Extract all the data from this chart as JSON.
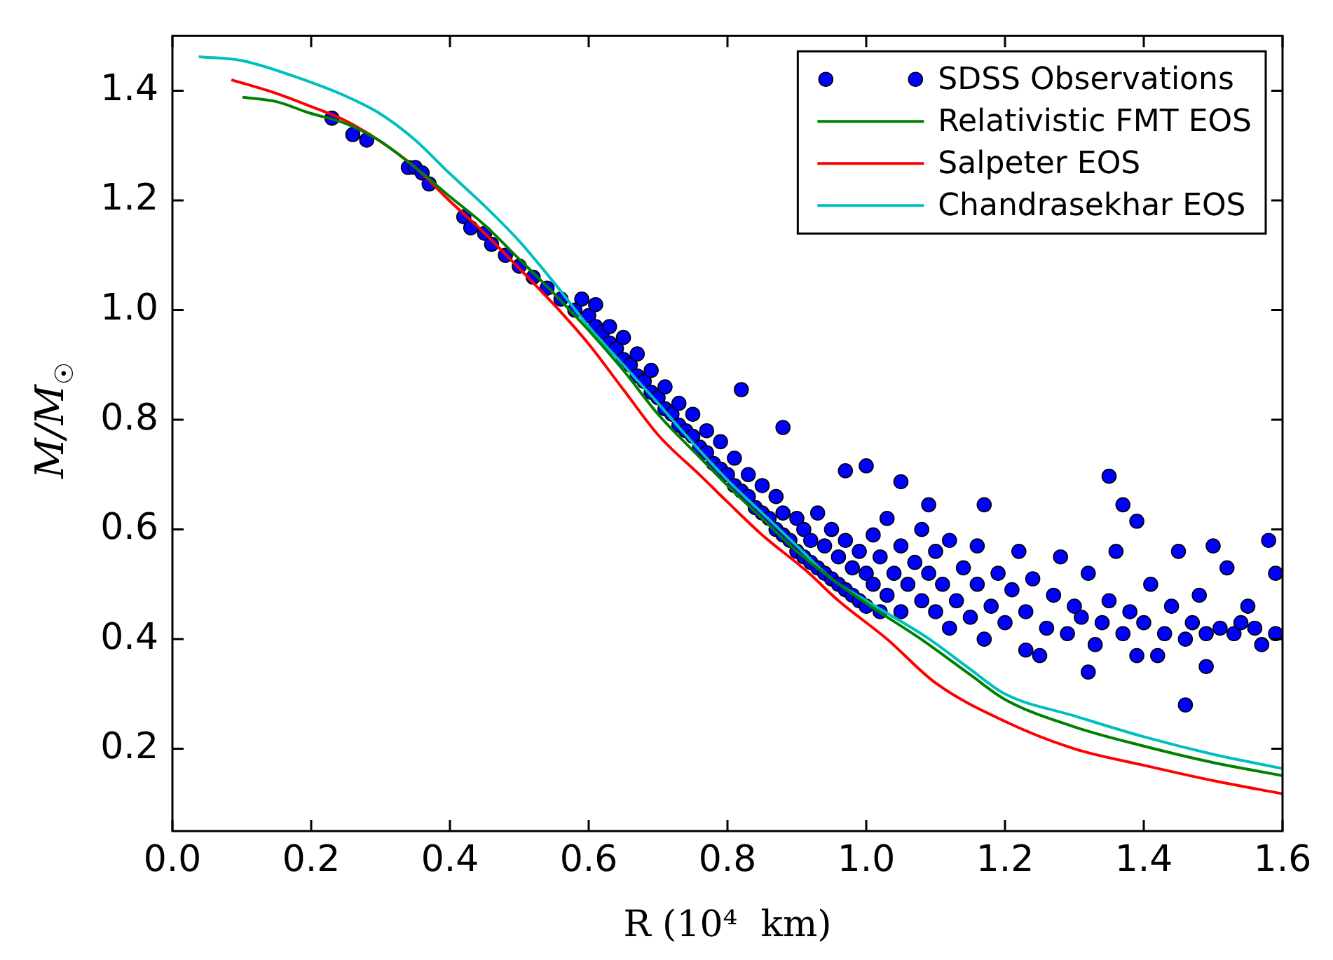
{
  "chart_data": {
    "type": "scatter",
    "xlabel": "R (10⁴  km)",
    "ylabel": "M/M$_{☉}$",
    "xlim": [
      0,
      1.6
    ],
    "xticks": [
      {
        "value": 0,
        "label": "0.0"
      },
      0.2,
      0.4,
      0.6,
      0.8,
      {
        "value": 1,
        "label": "1.0"
      },
      1.2,
      1.4,
      1.6
    ],
    "ylim": [
      0.05,
      1.5
    ],
    "yticks": [
      0.2,
      0.4,
      0.6,
      0.8,
      {
        "value": 1,
        "label": "1.0"
      },
      1.2,
      1.4
    ],
    "grid": false,
    "legend": "top right",
    "series": [
      {
        "name": "SDSS Observations",
        "marker": "circle",
        "color": "#0000ff",
        "x": [
          0.23,
          0.26,
          0.28,
          0.34,
          0.35,
          0.36,
          0.37,
          0.42,
          0.43,
          0.45,
          0.46,
          0.48,
          0.5,
          0.52,
          0.54,
          0.56,
          0.58,
          0.59,
          0.6,
          0.61,
          0.61,
          0.62,
          0.63,
          0.63,
          0.64,
          0.65,
          0.65,
          0.66,
          0.67,
          0.67,
          0.68,
          0.69,
          0.69,
          0.7,
          0.71,
          0.71,
          0.72,
          0.73,
          0.73,
          0.74,
          0.75,
          0.75,
          0.76,
          0.77,
          0.77,
          0.78,
          0.79,
          0.79,
          0.8,
          0.81,
          0.81,
          0.82,
          0.83,
          0.83,
          0.84,
          0.85,
          0.85,
          0.86,
          0.87,
          0.87,
          0.88,
          0.88,
          0.89,
          0.9,
          0.9,
          0.91,
          0.91,
          0.92,
          0.92,
          0.93,
          0.93,
          0.94,
          0.94,
          0.95,
          0.95,
          0.96,
          0.96,
          0.97,
          0.97,
          0.98,
          0.98,
          0.99,
          0.99,
          1.0,
          1.0,
          1.01,
          1.01,
          1.02,
          1.02,
          1.03,
          1.03,
          1.04,
          1.05,
          1.05,
          1.06,
          1.07,
          1.08,
          1.08,
          1.09,
          1.1,
          1.1,
          1.11,
          1.12,
          1.12,
          1.13,
          1.14,
          1.15,
          1.16,
          1.16,
          1.17,
          1.18,
          1.19,
          1.2,
          1.21,
          1.22,
          1.23,
          1.23,
          1.24,
          1.25,
          1.26,
          1.27,
          1.28,
          1.29,
          1.3,
          1.31,
          1.32,
          1.33,
          1.34,
          1.35,
          1.36,
          1.37,
          1.38,
          1.39,
          1.4,
          1.41,
          1.42,
          1.43,
          1.44,
          1.45,
          1.46,
          1.47,
          1.48,
          1.49,
          1.5,
          1.51,
          1.52,
          1.53,
          1.54,
          1.55,
          1.56,
          1.57,
          1.58,
          1.59,
          1.59,
          0.82,
          0.88,
          0.97,
          1.0,
          1.05,
          1.09,
          1.17,
          1.35,
          1.37,
          1.39,
          1.46,
          1.32,
          1.49
        ],
        "values": [
          1.35,
          1.32,
          1.31,
          1.26,
          1.26,
          1.25,
          1.23,
          1.17,
          1.15,
          1.14,
          1.12,
          1.1,
          1.08,
          1.06,
          1.04,
          1.02,
          1.0,
          1.02,
          0.99,
          0.97,
          1.01,
          0.96,
          0.94,
          0.97,
          0.93,
          0.91,
          0.95,
          0.9,
          0.88,
          0.92,
          0.87,
          0.85,
          0.89,
          0.84,
          0.82,
          0.86,
          0.81,
          0.79,
          0.83,
          0.78,
          0.77,
          0.81,
          0.75,
          0.74,
          0.78,
          0.72,
          0.71,
          0.76,
          0.7,
          0.68,
          0.73,
          0.67,
          0.66,
          0.7,
          0.64,
          0.63,
          0.68,
          0.62,
          0.6,
          0.66,
          0.59,
          0.63,
          0.58,
          0.56,
          0.62,
          0.55,
          0.6,
          0.54,
          0.58,
          0.53,
          0.63,
          0.52,
          0.57,
          0.51,
          0.6,
          0.5,
          0.55,
          0.49,
          0.58,
          0.48,
          0.53,
          0.47,
          0.56,
          0.46,
          0.52,
          0.5,
          0.59,
          0.45,
          0.55,
          0.48,
          0.62,
          0.52,
          0.45,
          0.57,
          0.5,
          0.54,
          0.47,
          0.6,
          0.52,
          0.45,
          0.56,
          0.5,
          0.42,
          0.58,
          0.47,
          0.53,
          0.44,
          0.5,
          0.57,
          0.4,
          0.46,
          0.52,
          0.43,
          0.49,
          0.56,
          0.38,
          0.45,
          0.51,
          0.37,
          0.42,
          0.48,
          0.55,
          0.41,
          0.46,
          0.44,
          0.52,
          0.39,
          0.43,
          0.47,
          0.56,
          0.41,
          0.45,
          0.37,
          0.43,
          0.5,
          0.37,
          0.41,
          0.46,
          0.56,
          0.4,
          0.43,
          0.48,
          0.41,
          0.57,
          0.42,
          0.53,
          0.41,
          0.43,
          0.46,
          0.42,
          0.39,
          0.58,
          0.41,
          0.52,
          0.855,
          0.786,
          0.707,
          0.716,
          0.687,
          0.645,
          0.645,
          0.697,
          0.645,
          0.615,
          0.28,
          0.34,
          0.35
        ]
      },
      {
        "name": "Relativistic FMT EOS",
        "type": "line",
        "marker": "none",
        "color": "#008000",
        "x": [
          0.101,
          0.15,
          0.196,
          0.25,
          0.297,
          0.35,
          0.398,
          0.45,
          0.499,
          0.55,
          0.6,
          0.65,
          0.7,
          0.762,
          0.8,
          0.85,
          0.9,
          0.95,
          1.0,
          1.079,
          1.15,
          1.2,
          1.3,
          1.4,
          1.5,
          1.6
        ],
        "values": [
          1.388,
          1.38,
          1.36,
          1.34,
          1.31,
          1.26,
          1.209,
          1.155,
          1.094,
          1.03,
          0.963,
          0.89,
          0.81,
          0.729,
          0.68,
          0.62,
          0.56,
          0.51,
          0.465,
          0.4,
          0.335,
          0.29,
          0.24,
          0.205,
          0.175,
          0.151
        ]
      },
      {
        "name": "Salpeter EOS",
        "type": "line",
        "marker": "none",
        "color": "#ff0000",
        "x": [
          0.085,
          0.15,
          0.196,
          0.25,
          0.297,
          0.35,
          0.398,
          0.45,
          0.499,
          0.55,
          0.6,
          0.65,
          0.701,
          0.762,
          0.8,
          0.85,
          0.915,
          0.96,
          1.03,
          1.1,
          1.2,
          1.3,
          1.4,
          1.5,
          1.6
        ],
        "values": [
          1.42,
          1.395,
          1.373,
          1.345,
          1.31,
          1.26,
          1.201,
          1.14,
          1.077,
          1.01,
          0.938,
          0.855,
          0.771,
          0.697,
          0.65,
          0.59,
          0.523,
          0.47,
          0.4,
          0.32,
          0.25,
          0.2,
          0.17,
          0.142,
          0.118
        ]
      },
      {
        "name": "Chandrasekhar EOS",
        "type": "line",
        "marker": "none",
        "color": "#00bfbf",
        "x": [
          0.038,
          0.1,
          0.196,
          0.25,
          0.297,
          0.35,
          0.398,
          0.45,
          0.499,
          0.55,
          0.6,
          0.65,
          0.7,
          0.735,
          0.8,
          0.85,
          0.9,
          0.95,
          1.0,
          1.091,
          1.15,
          1.2,
          1.3,
          1.4,
          1.5,
          1.6
        ],
        "values": [
          1.462,
          1.455,
          1.417,
          1.39,
          1.36,
          1.31,
          1.251,
          1.19,
          1.127,
          1.05,
          0.97,
          0.9,
          0.83,
          0.779,
          0.69,
          0.63,
          0.57,
          0.51,
          0.47,
          0.4,
          0.345,
          0.3,
          0.26,
          0.222,
          0.19,
          0.164
        ]
      }
    ]
  }
}
